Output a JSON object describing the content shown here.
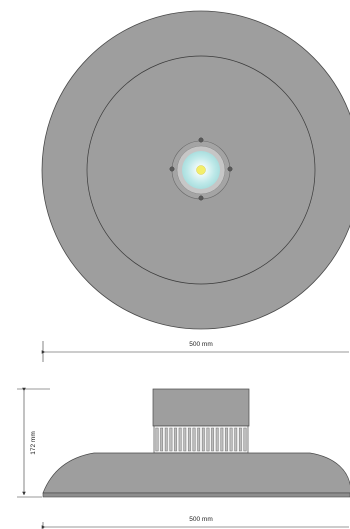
{
  "dimensions": {
    "width_top": "500 mm",
    "height_side": "172 mm",
    "width_bottom": "500 mm"
  },
  "colors": {
    "body_fill": "#9e9e9e",
    "outline": "#3a3a3a",
    "lens_glow": "#cfeeee",
    "led_core": "#f3ee6a",
    "dimension_line": "#333333"
  }
}
